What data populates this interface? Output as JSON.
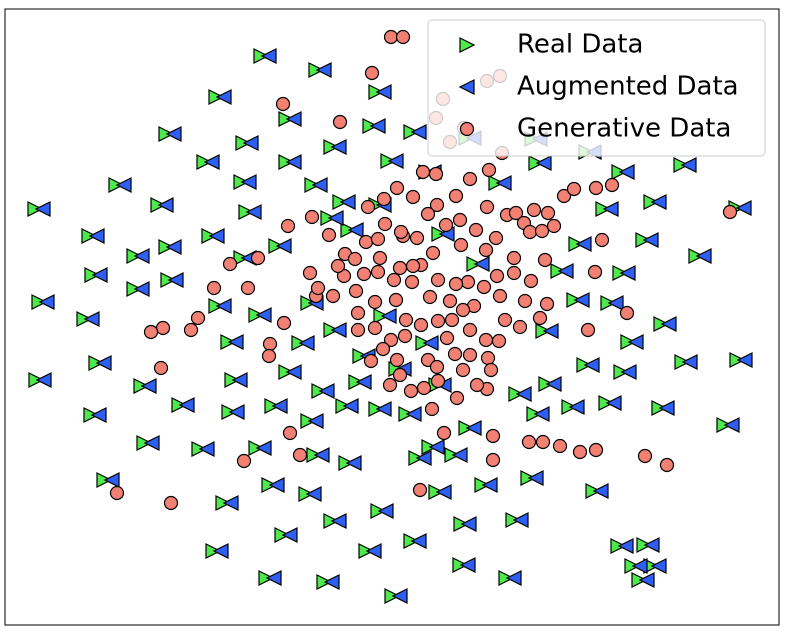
{
  "chart_data": {
    "type": "scatter",
    "legend": "upper right",
    "xlim": [
      5,
      779
    ],
    "ylim": [
      625,
      9
    ],
    "series": [
      {
        "name": "Real Data",
        "color": "#4ee94a",
        "marker": "triangle-right",
        "x": [
          261,
          316,
          216,
          376,
          166,
          286,
          243,
          204,
          286,
          116,
          35,
          158,
          89,
          209,
          134,
          92,
          134,
          39,
          84,
          96,
          36,
          141,
          91,
          179,
          144,
          229,
          199,
          104,
          223,
          282,
          213,
          366,
          266,
          324,
          411,
          392,
          461,
          513,
          460,
          506,
          618,
          644,
          632,
          651,
          639,
          593,
          482,
          528,
          436,
          378,
          331,
          306,
          269,
          659,
          724,
          696,
          736,
          682,
          737,
          643,
          651,
          619,
          603,
          576,
          620,
          608,
          661,
          621,
          628,
          606,
          569,
          534,
          546,
          584,
          558,
          574,
          543,
          516,
          466,
          429,
          406,
          376,
          343,
          308,
          272,
          232,
          286,
          319,
          356,
          396,
          436,
          360,
          331,
          299,
          256,
          216,
          168,
          166,
          241,
          276,
          308,
          381,
          423,
          474,
          439,
          348,
          328,
          376,
          246,
          241,
          312,
          340,
          388,
          426,
          496,
          536,
          586,
          681,
          532,
          466,
          411,
          370,
          331,
          346,
          256,
          452,
          416,
          314,
          228
        ],
        "y": [
          56,
          70,
          97,
          92,
          134,
          119,
          143,
          162,
          162,
          185,
          209,
          205,
          236,
          236,
          256,
          275,
          289,
          302,
          319,
          363,
          380,
          386,
          415,
          405,
          443,
          412,
          449,
          480,
          503,
          535,
          551,
          551,
          578,
          582,
          541,
          596,
          524,
          520,
          565,
          578,
          546,
          545,
          566,
          566,
          580,
          491,
          485,
          478,
          492,
          511,
          521,
          494,
          485,
          408,
          425,
          256,
          208,
          362,
          360,
          240,
          202,
          172,
          209,
          244,
          273,
          303,
          324,
          372,
          342,
          403,
          407,
          414,
          384,
          365,
          271,
          300,
          331,
          394,
          428,
          447,
          414,
          409,
          406,
          421,
          406,
          380,
          372,
          391,
          382,
          369,
          385,
          356,
          330,
          343,
          315,
          306,
          280,
          247,
          258,
          246,
          303,
          316,
          343,
          264,
          234,
          230,
          218,
          205,
          212,
          182,
          185,
          202,
          161,
          172,
          183,
          163,
          152,
          165,
          139,
          138,
          132,
          126,
          147,
          463,
          448,
          455,
          458,
          455,
          342
        ]
      },
      {
        "name": "Augmented Data",
        "color": "#2f5ff2",
        "marker": "triangle-left",
        "x": [
          269,
          324,
          224,
          384,
          174,
          294,
          251,
          212,
          294,
          124,
          43,
          166,
          97,
          217,
          142,
          100,
          142,
          47,
          92,
          104,
          44,
          149,
          99,
          187,
          152,
          237,
          207,
          112,
          231,
          290,
          221,
          374,
          274,
          332,
          419,
          400,
          469,
          521,
          468,
          514,
          626,
          652,
          640,
          659,
          647,
          601,
          490,
          536,
          444,
          386,
          339,
          314,
          277,
          667,
          732,
          704,
          744,
          690,
          745,
          651,
          659,
          627,
          611,
          584,
          628,
          616,
          669,
          629,
          636,
          614,
          577,
          542,
          554,
          592,
          566,
          582,
          551,
          524,
          474,
          437,
          414,
          384,
          351,
          316,
          280,
          240,
          294,
          327,
          364,
          404,
          444,
          368,
          339,
          307,
          264,
          224,
          176,
          174,
          249,
          284,
          316,
          389,
          431,
          482,
          447,
          356,
          336,
          384,
          254,
          249,
          320,
          348,
          396,
          434,
          504,
          544,
          594,
          689,
          540,
          474,
          419,
          378,
          339,
          354,
          264,
          460,
          424,
          322,
          236
        ],
        "y": [
          56,
          70,
          97,
          92,
          134,
          119,
          143,
          162,
          162,
          185,
          209,
          205,
          236,
          236,
          256,
          275,
          289,
          302,
          319,
          363,
          380,
          386,
          415,
          405,
          443,
          412,
          449,
          480,
          503,
          535,
          551,
          551,
          578,
          582,
          541,
          596,
          524,
          520,
          565,
          578,
          546,
          545,
          566,
          566,
          580,
          491,
          485,
          478,
          492,
          511,
          521,
          494,
          485,
          408,
          425,
          256,
          208,
          362,
          360,
          240,
          202,
          172,
          209,
          244,
          273,
          303,
          324,
          372,
          342,
          403,
          407,
          414,
          384,
          365,
          271,
          300,
          331,
          394,
          428,
          447,
          414,
          409,
          406,
          421,
          406,
          380,
          372,
          391,
          382,
          369,
          385,
          356,
          330,
          343,
          315,
          306,
          280,
          247,
          258,
          246,
          303,
          316,
          343,
          264,
          234,
          230,
          218,
          205,
          212,
          182,
          185,
          202,
          161,
          172,
          183,
          163,
          152,
          165,
          139,
          138,
          132,
          126,
          147,
          463,
          448,
          455,
          458,
          455,
          342
        ]
      },
      {
        "name": "Generative Data",
        "color": "#f28174",
        "marker": "circle",
        "x": [
          391,
          403,
          372,
          283,
          340,
          487,
          500,
          443,
          436,
          450,
          464,
          502,
          489,
          397,
          423,
          436,
          456,
          470,
          437,
          413,
          368,
          384,
          428,
          460,
          487,
          507,
          516,
          534,
          548,
          564,
          574,
          596,
          612,
          730,
          524,
          530,
          542,
          554,
          602,
          288,
          312,
          329,
          345,
          355,
          366,
          378,
          385,
          403,
          417,
          433,
          446,
          461,
          476,
          486,
          496,
          514,
          497,
          514,
          531,
          525,
          545,
          547,
          595,
          627,
          588,
          520,
          540,
          500,
          474,
          468,
          484,
          456,
          450,
          430,
          438,
          421,
          400,
          380,
          364,
          344,
          338,
          310,
          378,
          394,
          412,
          413,
          396,
          406,
          375,
          356,
          333,
          316,
          358,
          358,
          375,
          391,
          405,
          421,
          438,
          452,
          463,
          470,
          447,
          455,
          470,
          463,
          488,
          486,
          499,
          505,
          491,
          487,
          477,
          457,
          438,
          424,
          411,
          390,
          383,
          371,
          397,
          428,
          437,
          400,
          258,
          230,
          214,
          248,
          198,
          191,
          163,
          151,
          284,
          270,
          269,
          161,
          290,
          244,
          300,
          117,
          171,
          432,
          444,
          493,
          493,
          420,
          529,
          543,
          560,
          580,
          596,
          645,
          667,
          401,
          318
        ],
        "y": [
          37,
          37,
          73,
          104,
          122,
          81,
          76,
          99,
          118,
          142,
          128,
          153,
          170,
          188,
          172,
          174,
          196,
          179,
          205,
          197,
          207,
          199,
          214,
          220,
          207,
          215,
          213,
          210,
          213,
          196,
          189,
          188,
          185,
          212,
          223,
          232,
          231,
          226,
          240,
          226,
          217,
          235,
          254,
          259,
          242,
          239,
          224,
          236,
          238,
          253,
          225,
          245,
          230,
          250,
          238,
          258,
          276,
          273,
          281,
          301,
          260,
          304,
          272,
          313,
          330,
          327,
          318,
          296,
          306,
          282,
          287,
          284,
          301,
          297,
          280,
          265,
          268,
          258,
          274,
          276,
          266,
          273,
          272,
          280,
          282,
          266,
          300,
          320,
          302,
          291,
          296,
          296,
          313,
          330,
          328,
          340,
          336,
          325,
          321,
          320,
          310,
          330,
          338,
          354,
          355,
          370,
          358,
          340,
          341,
          320,
          370,
          389,
          385,
          398,
          381,
          388,
          391,
          385,
          349,
          361,
          360,
          360,
          367,
          375,
          258,
          264,
          288,
          288,
          318,
          330,
          328,
          332,
          323,
          344,
          356,
          368,
          433,
          461,
          455,
          493,
          503,
          409,
          433,
          436,
          460,
          490,
          442,
          442,
          446,
          452,
          450,
          456,
          465,
          232,
          288
        ]
      }
    ]
  }
}
